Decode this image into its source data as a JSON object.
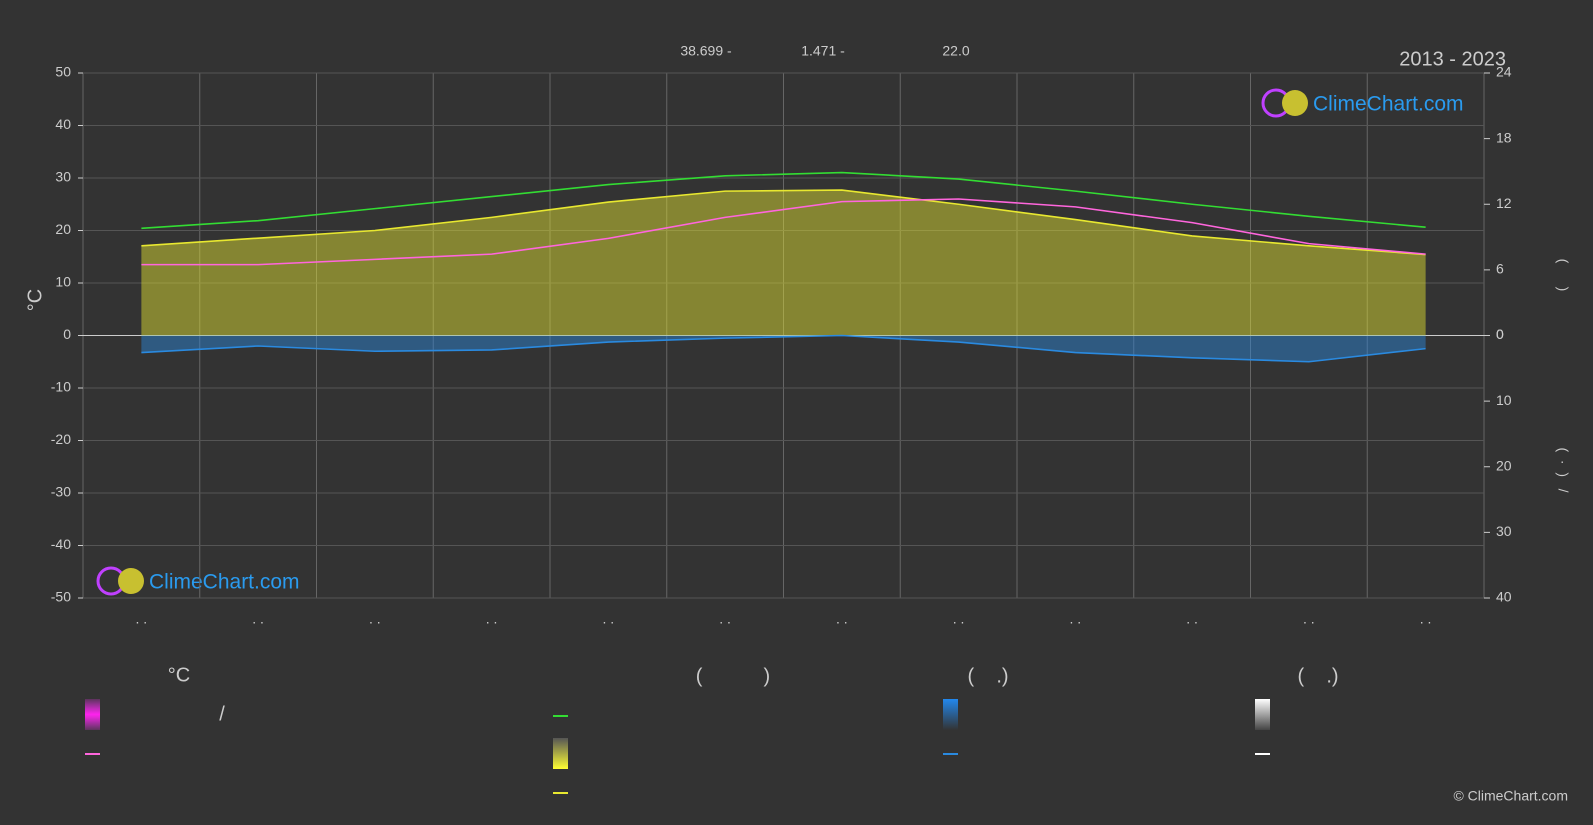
{
  "header": {
    "stats": [
      "38.699 -",
      "1.471 -",
      "22.0"
    ],
    "period": "2013 - 2023",
    "copyright": "© ClimeChart.com"
  },
  "watermarks": [
    "ClimeChart.com",
    "ClimeChart.com"
  ],
  "chart_data": {
    "type": "line",
    "ylabel": "°C",
    "categories": [
      ". .",
      ". .",
      ". .",
      ". .",
      ". .",
      ". .",
      ". .",
      ". .",
      ". .",
      ". .",
      ". .",
      ". ."
    ],
    "ylim": [
      -50,
      50
    ],
    "yticks": [
      -50,
      -40,
      -30,
      -20,
      -10,
      0,
      10,
      20,
      30,
      40,
      50
    ],
    "y2lim": [
      0,
      24
    ],
    "y2ticks": [
      0,
      6,
      12,
      18,
      24
    ],
    "y2label": "(      )",
    "y3lim": [
      0,
      40
    ],
    "y3ticks": [
      0,
      10,
      20,
      30,
      40
    ],
    "y3label": "(  ·  )   /",
    "grid": true,
    "series": [
      {
        "color": "#33dd33",
        "axis": "y2",
        "values": [
          9.8,
          10.5,
          11.6,
          12.7,
          13.8,
          14.6,
          14.9,
          14.3,
          13.2,
          12.0,
          10.9,
          9.9
        ]
      },
      {
        "color": "#e8e830",
        "axis": "y2",
        "area": true,
        "values": [
          8.2,
          8.9,
          9.6,
          10.8,
          12.2,
          13.2,
          13.3,
          12.0,
          10.6,
          9.1,
          8.2,
          7.4
        ]
      },
      {
        "color": "#ff66dd",
        "axis": "y",
        "values": [
          13.5,
          13.5,
          14.5,
          15.5,
          18.5,
          22.5,
          25.5,
          26.0,
          24.5,
          21.5,
          17.5,
          15.5
        ]
      },
      {
        "color": "#2a8ae0",
        "axis": "y3",
        "area": true,
        "values": [
          2.6,
          1.6,
          2.4,
          2.2,
          1.0,
          0.4,
          0.0,
          1.0,
          2.6,
          3.4,
          4.0,
          2.0
        ]
      }
    ]
  },
  "legend": {
    "headers": [
      "°C",
      "(           )",
      "(    .)",
      "(    .)"
    ],
    "slash": "/"
  }
}
